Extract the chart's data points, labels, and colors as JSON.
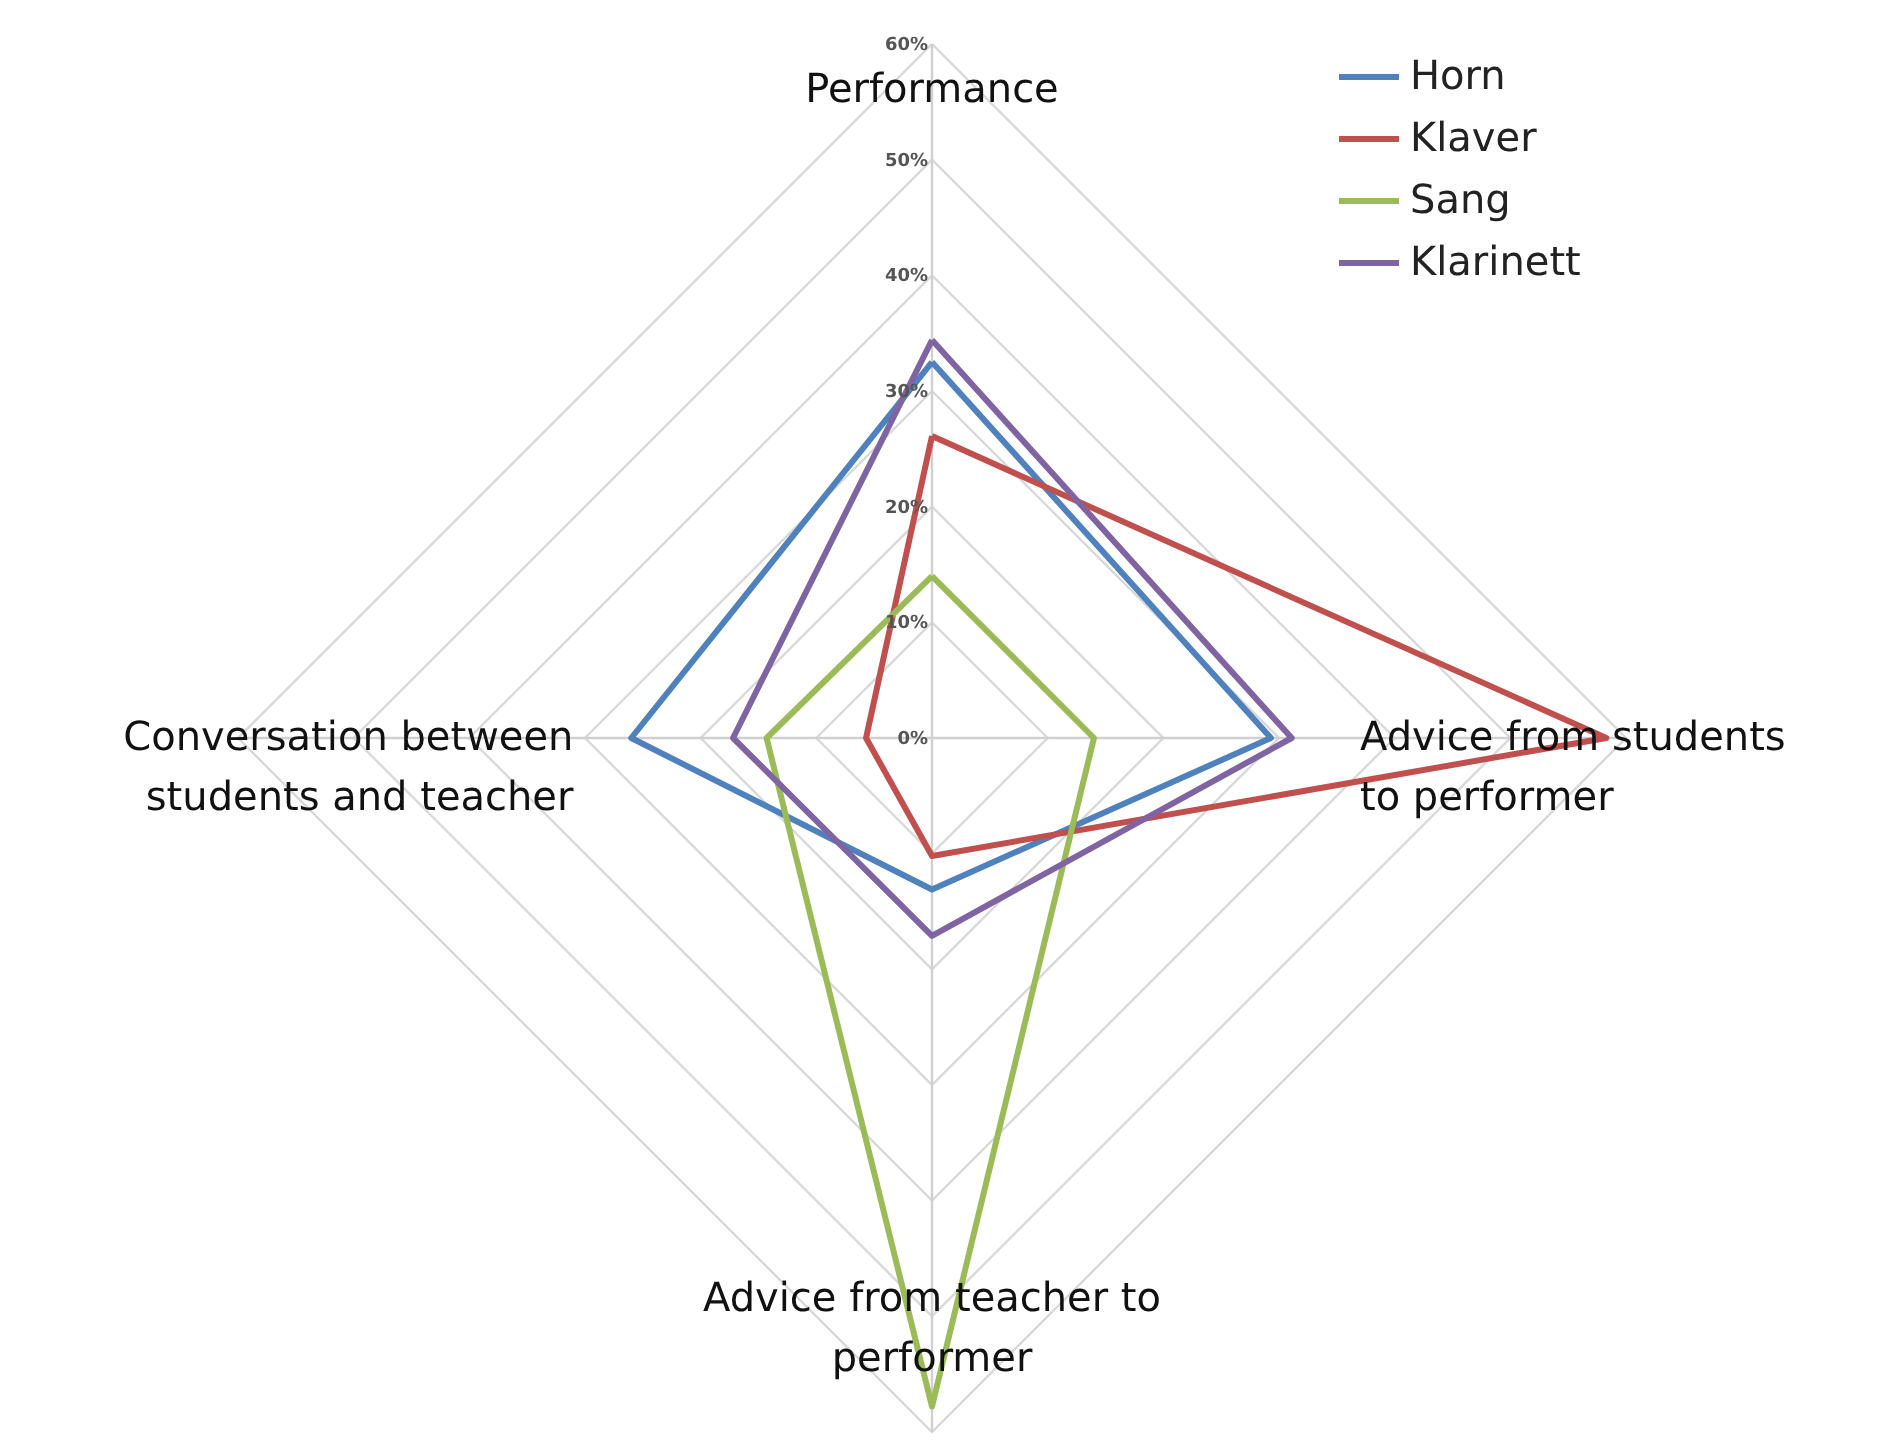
{
  "chart_data": {
    "type": "radar",
    "categories": [
      "Performance",
      "Advice from students to performer",
      "Advice from teacher to performer",
      "Conversation between students and teacher"
    ],
    "series": [
      {
        "name": "Horn",
        "color": "#4f81bd",
        "values": [
          32.5,
          29.3,
          13.1,
          26.0
        ]
      },
      {
        "name": "Klaver",
        "color": "#c0504d",
        "values": [
          26.1,
          58.3,
          10.2,
          5.7
        ]
      },
      {
        "name": "Sang",
        "color": "#9bbb59",
        "values": [
          14.0,
          14.0,
          57.8,
          14.3
        ]
      },
      {
        "name": "Klarinett",
        "color": "#8064a2",
        "values": [
          34.4,
          31.1,
          17.1,
          17.2
        ]
      }
    ],
    "ylim": [
      0,
      60
    ],
    "yticks": [
      {
        "value": 0,
        "label": "0%"
      },
      {
        "value": 10,
        "label": "10%"
      },
      {
        "value": 20,
        "label": "20%"
      },
      {
        "value": 30,
        "label": "30%"
      },
      {
        "value": 40,
        "label": "40%"
      },
      {
        "value": 50,
        "label": "50%"
      },
      {
        "value": 60,
        "label": "60%"
      }
    ],
    "grid": true,
    "legend": "top right",
    "marker": "none",
    "line_style": "solid"
  }
}
